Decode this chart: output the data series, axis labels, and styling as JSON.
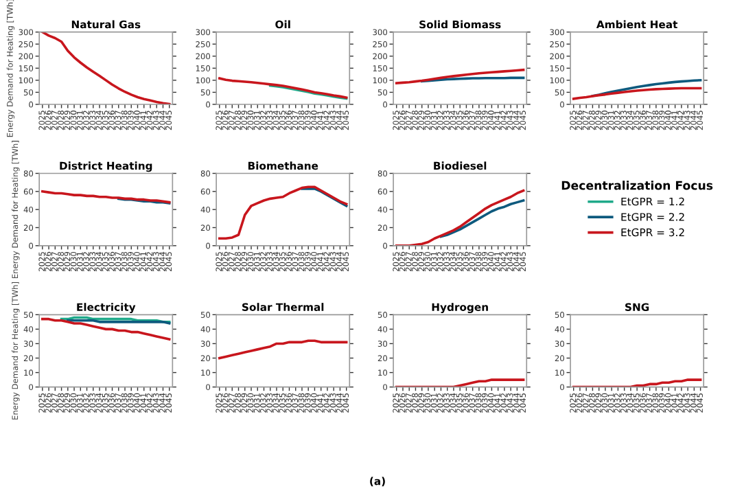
{
  "chart_data": [
    {
      "type": "line",
      "title": "Natural Gas",
      "ylabel": "Energy Demand for Heating [TWh]",
      "legend": "right",
      "legend_title": "Decentralization Focus",
      "categories": [
        "2025",
        "2026",
        "2027",
        "2028",
        "2029",
        "2030",
        "2031",
        "2032",
        "2033",
        "2034",
        "2035",
        "2036",
        "2037",
        "2038",
        "2039",
        "2040",
        "2041",
        "2042",
        "2043",
        "2044",
        "2045"
      ],
      "ylim": [
        0,
        300
      ],
      "yticks": [
        0,
        50,
        100,
        150,
        200,
        250,
        300
      ],
      "series": [
        {
          "name": "EtGPR = 1.2",
          "color": "#1fa98a",
          "values": [
            null,
            null,
            null,
            null,
            null,
            null,
            null,
            null,
            null,
            null,
            null,
            null,
            null,
            null,
            null,
            null,
            null,
            null,
            null,
            null,
            null
          ]
        },
        {
          "name": "EtGPR = 2.2",
          "color": "#0e5a7e",
          "values": [
            null,
            null,
            null,
            null,
            null,
            null,
            null,
            null,
            null,
            null,
            null,
            null,
            null,
            null,
            null,
            null,
            null,
            null,
            null,
            null,
            null
          ]
        },
        {
          "name": "EtGPR = 3.2",
          "color": "#c8161d",
          "values": [
            300,
            285,
            275,
            260,
            222,
            195,
            173,
            153,
            135,
            118,
            100,
            82,
            66,
            52,
            40,
            30,
            22,
            16,
            10,
            5,
            1
          ]
        }
      ]
    },
    {
      "type": "line",
      "title": "Oil",
      "categories": [
        "2025",
        "2026",
        "2027",
        "2028",
        "2029",
        "2030",
        "2031",
        "2032",
        "2033",
        "2034",
        "2035",
        "2036",
        "2037",
        "2038",
        "2039",
        "2040",
        "2041",
        "2042",
        "2043",
        "2044",
        "2045"
      ],
      "ylim": [
        0,
        300
      ],
      "yticks": [
        0,
        50,
        100,
        150,
        200,
        250,
        300
      ],
      "series": [
        {
          "color": "#1fa98a",
          "values": [
            null,
            null,
            null,
            null,
            null,
            null,
            null,
            null,
            78,
            75,
            71,
            66,
            61,
            56,
            51,
            45,
            41,
            37,
            32,
            28,
            24
          ]
        },
        {
          "color": "#0e5a7e",
          "values": [
            null,
            null,
            null,
            null,
            null,
            null,
            null,
            null,
            null,
            null,
            null,
            null,
            null,
            null,
            null,
            null,
            null,
            null,
            null,
            null,
            null
          ]
        },
        {
          "color": "#c8161d",
          "values": [
            108,
            102,
            98,
            96,
            94,
            92,
            89,
            86,
            83,
            80,
            77,
            72,
            67,
            62,
            56,
            50,
            46,
            42,
            37,
            33,
            28
          ]
        }
      ]
    },
    {
      "type": "line",
      "title": "Solid Biomass",
      "categories": [
        "2025",
        "2026",
        "2027",
        "2028",
        "2029",
        "2030",
        "2031",
        "2032",
        "2033",
        "2034",
        "2035",
        "2036",
        "2037",
        "2038",
        "2039",
        "2040",
        "2041",
        "2042",
        "2043",
        "2044",
        "2045"
      ],
      "ylim": [
        0,
        300
      ],
      "yticks": [
        0,
        50,
        100,
        150,
        200,
        250,
        300
      ],
      "series": [
        {
          "color": "#1fa98a",
          "values": [
            null,
            null,
            null,
            null,
            null,
            null,
            null,
            null,
            null,
            null,
            null,
            null,
            null,
            null,
            null,
            null,
            null,
            null,
            null,
            null,
            null
          ]
        },
        {
          "color": "#0e5a7e",
          "values": [
            null,
            null,
            null,
            null,
            96,
            98,
            100,
            102,
            104,
            105,
            106,
            107,
            108,
            108,
            109,
            109,
            109,
            109,
            110,
            110,
            110
          ]
        },
        {
          "color": "#c8161d",
          "values": [
            88,
            90,
            92,
            95,
            98,
            102,
            106,
            110,
            114,
            117,
            120,
            123,
            126,
            129,
            131,
            133,
            135,
            137,
            139,
            141,
            143
          ]
        }
      ]
    },
    {
      "type": "line",
      "title": "Ambient Heat",
      "categories": [
        "2025",
        "2026",
        "2027",
        "2028",
        "2029",
        "2030",
        "2031",
        "2032",
        "2033",
        "2034",
        "2035",
        "2036",
        "2037",
        "2038",
        "2039",
        "2040",
        "2041",
        "2042",
        "2043",
        "2044",
        "2045"
      ],
      "ylim": [
        0,
        300
      ],
      "yticks": [
        0,
        50,
        100,
        150,
        200,
        250,
        300
      ],
      "series": [
        {
          "color": "#1fa98a",
          "values": [
            null,
            null,
            null,
            null,
            null,
            null,
            null,
            null,
            null,
            null,
            null,
            null,
            null,
            null,
            null,
            null,
            null,
            null,
            null,
            null,
            null
          ]
        },
        {
          "color": "#0e5a7e",
          "values": [
            null,
            null,
            null,
            35,
            40,
            46,
            52,
            57,
            62,
            67,
            72,
            76,
            80,
            84,
            87,
            90,
            93,
            95,
            97,
            99,
            100
          ]
        },
        {
          "color": "#c8161d",
          "values": [
            23,
            27,
            30,
            34,
            38,
            41,
            45,
            48,
            51,
            54,
            57,
            59,
            61,
            63,
            64,
            65,
            66,
            67,
            67,
            67,
            67
          ]
        }
      ]
    },
    {
      "type": "line",
      "title": "District Heating",
      "ylabel": "Energy Demand for Heating [TWh]",
      "categories": [
        "2025",
        "2026",
        "2027",
        "2028",
        "2029",
        "2030",
        "2031",
        "2032",
        "2033",
        "2034",
        "2035",
        "2036",
        "2037",
        "2038",
        "2039",
        "2040",
        "2041",
        "2042",
        "2043",
        "2044",
        "2045"
      ],
      "ylim": [
        0,
        80
      ],
      "yticks": [
        0,
        20,
        40,
        60,
        80
      ],
      "series": [
        {
          "color": "#1fa98a",
          "values": [
            null,
            null,
            null,
            null,
            null,
            null,
            null,
            null,
            null,
            null,
            null,
            null,
            null,
            null,
            null,
            null,
            null,
            null,
            null,
            null,
            null
          ]
        },
        {
          "color": "#0e5a7e",
          "values": [
            null,
            null,
            null,
            null,
            null,
            null,
            null,
            null,
            null,
            null,
            null,
            null,
            52,
            51,
            51,
            50,
            49,
            49,
            48,
            48,
            47
          ]
        },
        {
          "color": "#c8161d",
          "values": [
            60,
            59,
            58,
            58,
            57,
            56,
            56,
            55,
            55,
            54,
            54,
            53,
            53,
            52,
            52,
            51,
            51,
            50,
            50,
            49,
            48
          ]
        }
      ]
    },
    {
      "type": "line",
      "title": "Biomethane",
      "categories": [
        "2025",
        "2026",
        "2027",
        "2028",
        "2029",
        "2030",
        "2031",
        "2032",
        "2033",
        "2034",
        "2035",
        "2036",
        "2037",
        "2038",
        "2039",
        "2040",
        "2041",
        "2042",
        "2043",
        "2044",
        "2045"
      ],
      "ylim": [
        0,
        80
      ],
      "yticks": [
        0,
        20,
        40,
        60,
        80
      ],
      "series": [
        {
          "color": "#1fa98a",
          "values": [
            null,
            null,
            null,
            null,
            null,
            null,
            null,
            null,
            null,
            null,
            null,
            null,
            null,
            null,
            null,
            null,
            null,
            null,
            null,
            null,
            null
          ]
        },
        {
          "color": "#0e5a7e",
          "values": [
            null,
            null,
            null,
            null,
            null,
            null,
            null,
            null,
            null,
            null,
            null,
            null,
            null,
            63,
            63,
            63,
            60,
            56,
            52,
            48,
            44
          ]
        },
        {
          "color": "#c8161d",
          "values": [
            8,
            8,
            9,
            12,
            34,
            44,
            47,
            50,
            52,
            53,
            54,
            58,
            61,
            64,
            65,
            65,
            61,
            57,
            53,
            49,
            46
          ]
        }
      ]
    },
    {
      "type": "line",
      "title": "Biodiesel",
      "categories": [
        "2025",
        "2026",
        "2027",
        "2028",
        "2029",
        "2030",
        "2031",
        "2032",
        "2033",
        "2034",
        "2035",
        "2036",
        "2037",
        "2038",
        "2039",
        "2040",
        "2041",
        "2042",
        "2043",
        "2044",
        "2045"
      ],
      "ylim": [
        0,
        80
      ],
      "yticks": [
        0,
        20,
        40,
        60,
        80
      ],
      "series": [
        {
          "color": "#1fa98a",
          "values": [
            null,
            null,
            null,
            null,
            null,
            null,
            null,
            null,
            null,
            null,
            null,
            null,
            null,
            null,
            null,
            null,
            null,
            null,
            null,
            null,
            null
          ]
        },
        {
          "color": "#0e5a7e",
          "values": [
            null,
            null,
            null,
            null,
            null,
            null,
            null,
            10,
            12,
            15,
            18,
            22,
            26,
            30,
            34,
            38,
            41,
            43,
            46,
            48,
            50
          ]
        },
        {
          "color": "#c8161d",
          "values": [
            0,
            0,
            0,
            1,
            2,
            4,
            8,
            11,
            14,
            17,
            21,
            26,
            31,
            36,
            41,
            45,
            48,
            51,
            54,
            58,
            61
          ]
        }
      ]
    },
    {
      "type": "line",
      "title": "Electricity",
      "ylabel": "Energy Demand for Heating [TWh]",
      "categories": [
        "2025",
        "2026",
        "2027",
        "2028",
        "2029",
        "2030",
        "2031",
        "2032",
        "2033",
        "2034",
        "2035",
        "2036",
        "2037",
        "2038",
        "2039",
        "2040",
        "2041",
        "2042",
        "2043",
        "2044",
        "2045"
      ],
      "ylim": [
        0,
        50
      ],
      "yticks": [
        0,
        10,
        20,
        30,
        40,
        50
      ],
      "series": [
        {
          "color": "#1fa98a",
          "values": [
            null,
            null,
            null,
            47,
            47,
            48,
            48,
            48,
            47,
            47,
            47,
            47,
            47,
            47,
            47,
            46,
            46,
            46,
            46,
            45,
            45
          ]
        },
        {
          "color": "#0e5a7e",
          "values": [
            null,
            null,
            null,
            null,
            46,
            46,
            46,
            46,
            46,
            45,
            45,
            45,
            45,
            45,
            45,
            45,
            45,
            45,
            45,
            45,
            44
          ]
        },
        {
          "color": "#c8161d",
          "values": [
            47,
            47,
            46,
            46,
            45,
            44,
            44,
            43,
            42,
            41,
            40,
            40,
            39,
            39,
            38,
            38,
            37,
            36,
            35,
            34,
            33
          ]
        }
      ]
    },
    {
      "type": "line",
      "title": "Solar Thermal",
      "categories": [
        "2025",
        "2026",
        "2027",
        "2028",
        "2029",
        "2030",
        "2031",
        "2032",
        "2033",
        "2034",
        "2035",
        "2036",
        "2037",
        "2038",
        "2039",
        "2040",
        "2041",
        "2042",
        "2043",
        "2044",
        "2045"
      ],
      "ylim": [
        0,
        50
      ],
      "yticks": [
        0,
        10,
        20,
        30,
        40,
        50
      ],
      "series": [
        {
          "color": "#1fa98a",
          "values": [
            null,
            null,
            null,
            null,
            null,
            null,
            null,
            null,
            null,
            null,
            null,
            null,
            null,
            null,
            null,
            null,
            null,
            null,
            null,
            null,
            null
          ]
        },
        {
          "color": "#0e5a7e",
          "values": [
            null,
            null,
            null,
            null,
            null,
            null,
            null,
            null,
            null,
            null,
            null,
            null,
            null,
            null,
            null,
            null,
            null,
            null,
            null,
            null,
            null
          ]
        },
        {
          "color": "#c8161d",
          "values": [
            20,
            21,
            22,
            23,
            24,
            25,
            26,
            27,
            28,
            30,
            30,
            31,
            31,
            31,
            32,
            32,
            31,
            31,
            31,
            31,
            31
          ]
        }
      ]
    },
    {
      "type": "line",
      "title": "Hydrogen",
      "categories": [
        "2025",
        "2026",
        "2027",
        "2028",
        "2029",
        "2030",
        "2031",
        "2032",
        "2033",
        "2034",
        "2035",
        "2036",
        "2037",
        "2038",
        "2039",
        "2040",
        "2041",
        "2042",
        "2043",
        "2044",
        "2045"
      ],
      "ylim": [
        0,
        50
      ],
      "yticks": [
        0,
        10,
        20,
        30,
        40,
        50
      ],
      "series": [
        {
          "color": "#1fa98a",
          "values": [
            null,
            null,
            null,
            null,
            null,
            null,
            null,
            null,
            null,
            null,
            null,
            null,
            null,
            null,
            null,
            null,
            null,
            null,
            null,
            null,
            null
          ]
        },
        {
          "color": "#0e5a7e",
          "values": [
            null,
            null,
            null,
            null,
            null,
            null,
            null,
            null,
            null,
            null,
            null,
            null,
            null,
            null,
            null,
            null,
            null,
            null,
            null,
            null,
            null
          ]
        },
        {
          "color": "#c8161d",
          "values": [
            0,
            0,
            0,
            0,
            0,
            0,
            0,
            0,
            0,
            0,
            1,
            2,
            3,
            4,
            4,
            5,
            5,
            5,
            5,
            5,
            5
          ]
        }
      ]
    },
    {
      "type": "line",
      "title": "SNG",
      "annotations": [
        "(a)"
      ],
      "categories": [
        "2025",
        "2026",
        "2027",
        "2028",
        "2029",
        "2030",
        "2031",
        "2032",
        "2033",
        "2034",
        "2035",
        "2036",
        "2037",
        "2038",
        "2039",
        "2040",
        "2041",
        "2042",
        "2043",
        "2044",
        "2045"
      ],
      "ylim": [
        0,
        50
      ],
      "yticks": [
        0,
        10,
        20,
        30,
        40,
        50
      ],
      "series": [
        {
          "color": "#1fa98a",
          "values": [
            null,
            null,
            null,
            null,
            null,
            null,
            null,
            null,
            null,
            null,
            null,
            null,
            null,
            null,
            null,
            null,
            null,
            null,
            null,
            null,
            null
          ]
        },
        {
          "color": "#0e5a7e",
          "values": [
            null,
            null,
            null,
            null,
            null,
            null,
            null,
            null,
            null,
            null,
            null,
            null,
            null,
            null,
            null,
            null,
            null,
            null,
            null,
            null,
            null
          ]
        },
        {
          "color": "#c8161d",
          "values": [
            0,
            0,
            0,
            0,
            0,
            0,
            0,
            0,
            0,
            0,
            1,
            1,
            2,
            2,
            3,
            3,
            4,
            4,
            5,
            5,
            5
          ]
        }
      ]
    }
  ]
}
